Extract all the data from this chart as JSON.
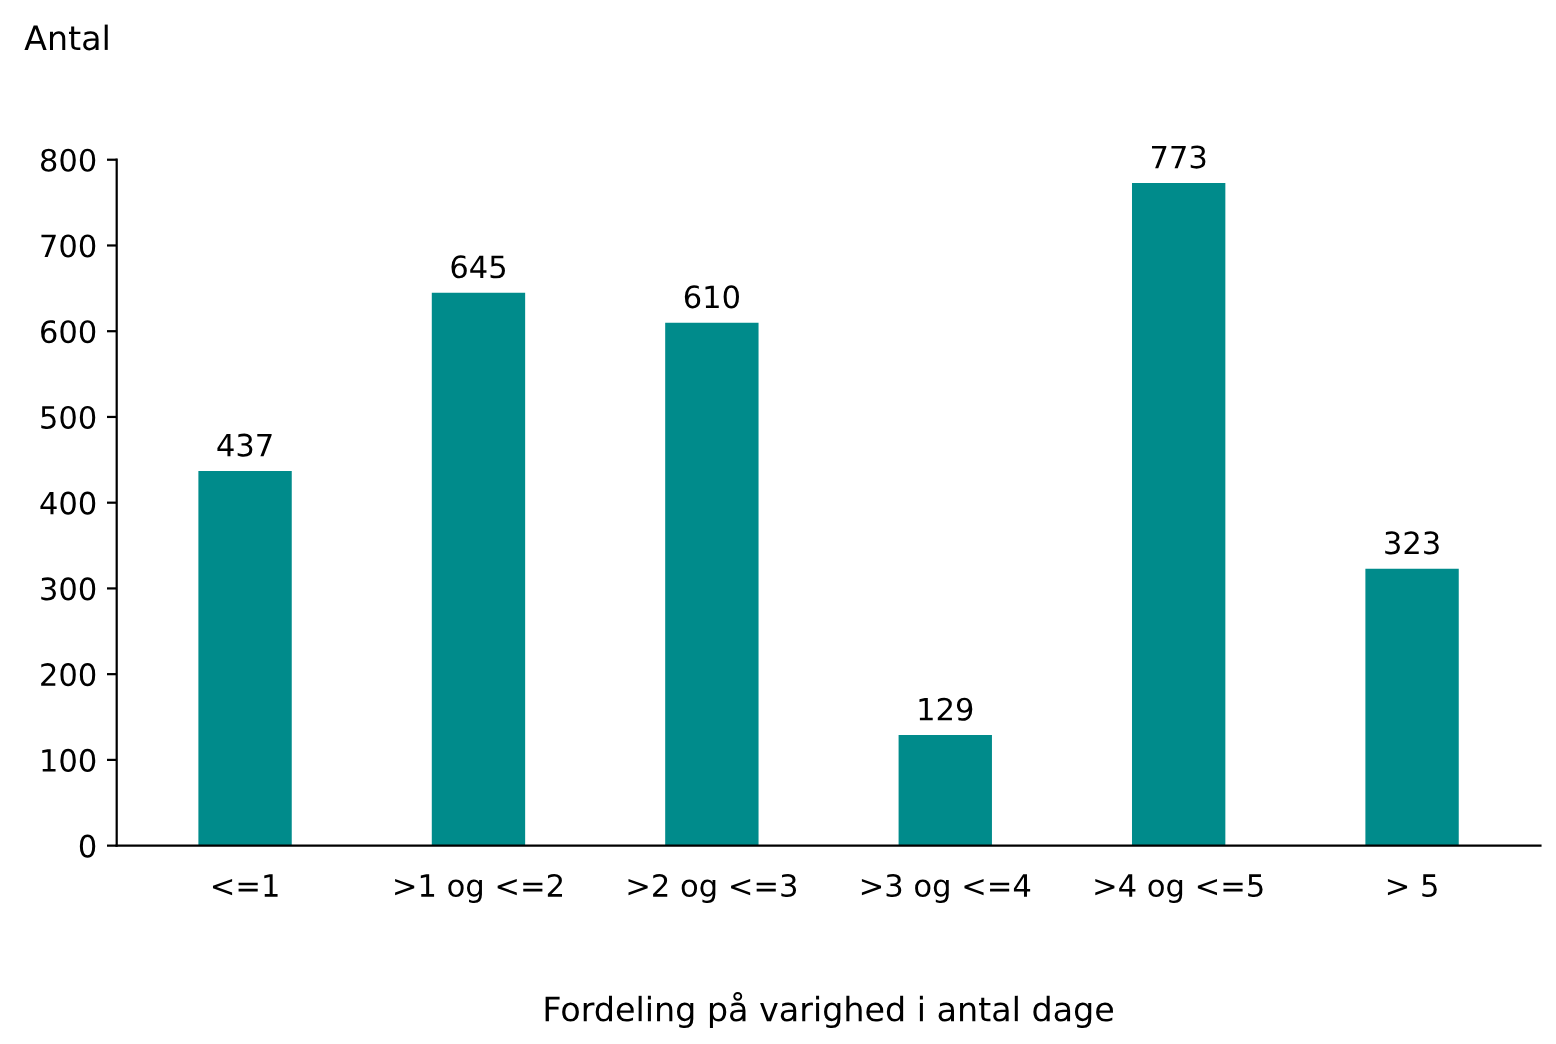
{
  "chart_data": {
    "type": "bar",
    "ylabel": "Antal",
    "xlabel": "Fordeling på varighed i antal dage",
    "categories": [
      "<=1",
      ">1 og <=2",
      ">2 og <=3",
      ">3 og <=4",
      ">4 og <=5",
      "> 5"
    ],
    "values": [
      437,
      645,
      610,
      129,
      773,
      323
    ],
    "color": "#008b8b",
    "ylim": [
      0,
      800
    ],
    "yticks": [
      0,
      100,
      200,
      300,
      400,
      500,
      600,
      700,
      800
    ],
    "grid": false,
    "legend": false,
    "data_labels": true
  }
}
